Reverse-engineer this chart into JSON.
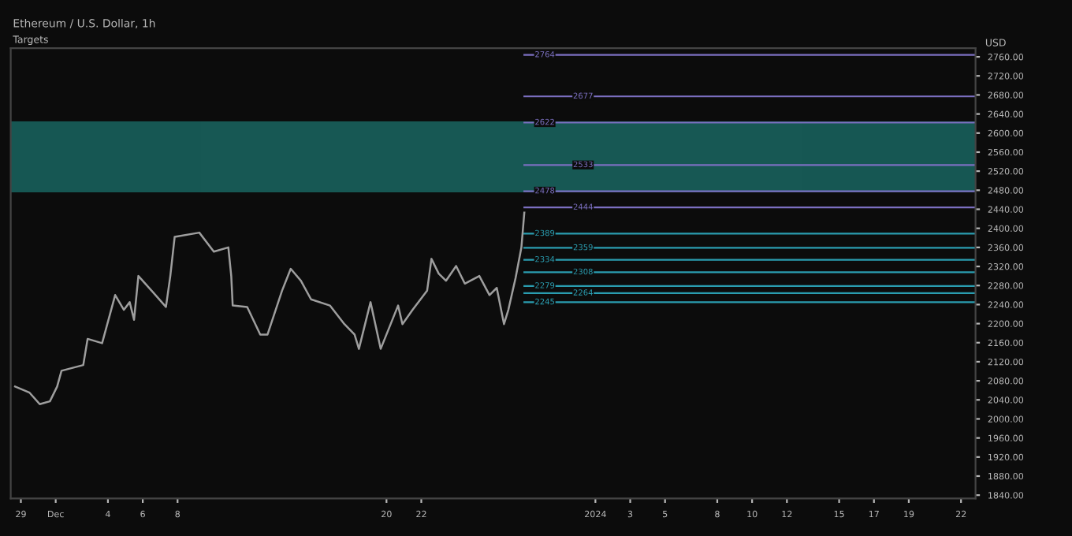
{
  "chart_data": {
    "type": "line",
    "title": "Ethereum / U.S. Dollar, 1h",
    "subtitle": "Targets",
    "ylabel": "USD",
    "x": [
      "2023-11-28T16:00",
      "2023-11-29T12:00",
      "2023-11-30T02:00",
      "2023-11-30T16:00",
      "2023-12-01T02:00",
      "2023-12-01T08:00",
      "2023-12-02T14:00",
      "2023-12-02T20:00",
      "2023-12-03T16:00",
      "2023-12-04T10:00",
      "2023-12-04T22:00",
      "2023-12-05T06:00",
      "2023-12-05T12:00",
      "2023-12-05T18:00",
      "2023-12-06T14:00",
      "2023-12-07T08:00",
      "2023-12-07T14:00",
      "2023-12-07T20:00",
      "2023-12-09T06:00",
      "2023-12-10T02:00",
      "2023-12-10T22:00",
      "2023-12-11T02:00",
      "2023-12-11T04:00",
      "2023-12-12T00:00",
      "2023-12-12T18:00",
      "2023-12-13T04:00",
      "2023-12-14T00:00",
      "2023-12-14T12:00",
      "2023-12-15T02:00",
      "2023-12-15T16:00",
      "2023-12-16T18:00",
      "2023-12-17T14:00",
      "2023-12-18T04:00",
      "2023-12-18T10:00",
      "2023-12-19T02:00",
      "2023-12-19T16:00",
      "2023-12-20T16:00",
      "2023-12-20T22:00",
      "2023-12-21T12:00",
      "2023-12-22T08:00",
      "2023-12-22T14:00",
      "2023-12-23T00:00",
      "2023-12-23T10:00",
      "2023-12-24T00:00",
      "2023-12-24T12:00",
      "2023-12-25T08:00",
      "2023-12-25T22:00",
      "2023-12-26T08:00",
      "2023-12-26T18:00",
      "2023-12-27T00:00",
      "2023-12-27T10:00",
      "2023-12-27T18:00",
      "2023-12-27T22:00"
    ],
    "series": [
      {
        "color": "#9e9e9e",
        "values": [
          2068,
          2055,
          2031,
          2037,
          2068,
          2101,
          2113,
          2168,
          2159,
          2260,
          2229,
          2245,
          2208,
          2300,
          2266,
          2235,
          2300,
          2382,
          2391,
          2351,
          2360,
          2300,
          2238,
          2235,
          2177,
          2177,
          2269,
          2315,
          2290,
          2251,
          2238,
          2199,
          2177,
          2147,
          2245,
          2147,
          2238,
          2199,
          2229,
          2269,
          2336,
          2305,
          2290,
          2321,
          2284,
          2300,
          2260,
          2275,
          2199,
          2229,
          2296,
          2360,
          2433
        ]
      }
    ],
    "xlim": [
      "2023-11-28T10:00",
      "2024-01-22T20:00"
    ],
    "xticks": [
      {
        "value": "2023-11-29",
        "label": "29"
      },
      {
        "value": "2023-12-01",
        "label": "Dec"
      },
      {
        "value": "2023-12-04",
        "label": "4"
      },
      {
        "value": "2023-12-06",
        "label": "6"
      },
      {
        "value": "2023-12-08",
        "label": "8"
      },
      {
        "value": "2023-12-20",
        "label": "20"
      },
      {
        "value": "2023-12-22",
        "label": "22"
      },
      {
        "value": "2024-01-01",
        "label": "2024"
      },
      {
        "value": "2024-01-03",
        "label": "3"
      },
      {
        "value": "2024-01-05",
        "label": "5"
      },
      {
        "value": "2024-01-08",
        "label": "8"
      },
      {
        "value": "2024-01-10",
        "label": "10"
      },
      {
        "value": "2024-01-12",
        "label": "12"
      },
      {
        "value": "2024-01-15",
        "label": "15"
      },
      {
        "value": "2024-01-17",
        "label": "17"
      },
      {
        "value": "2024-01-19",
        "label": "19"
      },
      {
        "value": "2024-01-22",
        "label": "22"
      }
    ],
    "ylim": [
      1833,
      2778
    ],
    "yticks": [
      {
        "value": 1840,
        "label": "1840.00"
      },
      {
        "value": 1880,
        "label": "1880.00"
      },
      {
        "value": 1920,
        "label": "1920.00"
      },
      {
        "value": 1960,
        "label": "1960.00"
      },
      {
        "value": 2000,
        "label": "2000.00"
      },
      {
        "value": 2040,
        "label": "2040.00"
      },
      {
        "value": 2080,
        "label": "2080.00"
      },
      {
        "value": 2120,
        "label": "2120.00"
      },
      {
        "value": 2160,
        "label": "2160.00"
      },
      {
        "value": 2200,
        "label": "2200.00"
      },
      {
        "value": 2240,
        "label": "2240.00"
      },
      {
        "value": 2280,
        "label": "2280.00"
      },
      {
        "value": 2320,
        "label": "2320.00"
      },
      {
        "value": 2360,
        "label": "2360.00"
      },
      {
        "value": 2400,
        "label": "2400.00"
      },
      {
        "value": 2440,
        "label": "2440.00"
      },
      {
        "value": 2480,
        "label": "2480.00"
      },
      {
        "value": 2520,
        "label": "2520.00"
      },
      {
        "value": 2560,
        "label": "2560.00"
      },
      {
        "value": 2600,
        "label": "2600.00"
      },
      {
        "value": 2640,
        "label": "2640.00"
      },
      {
        "value": 2680,
        "label": "2680.00"
      },
      {
        "value": 2720,
        "label": "2720.00"
      },
      {
        "value": 2760,
        "label": "2760.00"
      }
    ],
    "ref_lines": [
      {
        "axis": "y",
        "value": 2764,
        "label": "2764",
        "color": "#7b6fc0"
      },
      {
        "axis": "y",
        "value": 2677,
        "label": "2677",
        "color": "#7b6fc0"
      },
      {
        "axis": "y",
        "value": 2622,
        "label": "2622",
        "color": "#7b6fc0"
      },
      {
        "axis": "y",
        "value": 2533,
        "label": "2533",
        "color": "#7b6fc0"
      },
      {
        "axis": "y",
        "value": 2478,
        "label": "2478",
        "color": "#7b6fc0"
      },
      {
        "axis": "y",
        "value": 2444,
        "label": "2444",
        "color": "#7b6fc0"
      },
      {
        "axis": "y",
        "value": 2389,
        "label": "2389",
        "color": "#2a9db0"
      },
      {
        "axis": "y",
        "value": 2359,
        "label": "2359",
        "color": "#2a9db0"
      },
      {
        "axis": "y",
        "value": 2334,
        "label": "2334",
        "color": "#2a9db0"
      },
      {
        "axis": "y",
        "value": 2308,
        "label": "2308",
        "color": "#2a9db0"
      },
      {
        "axis": "y",
        "value": 2279,
        "label": "2279",
        "color": "#2a9db0"
      },
      {
        "axis": "y",
        "value": 2264,
        "label": "2264",
        "color": "#2a9db0"
      },
      {
        "axis": "y",
        "value": 2245,
        "label": "2245",
        "color": "#2a9db0"
      }
    ],
    "bands": [
      {
        "axis": "y",
        "from": 2478,
        "to": 2622,
        "color": "#1a6b66"
      }
    ],
    "grid": false
  }
}
